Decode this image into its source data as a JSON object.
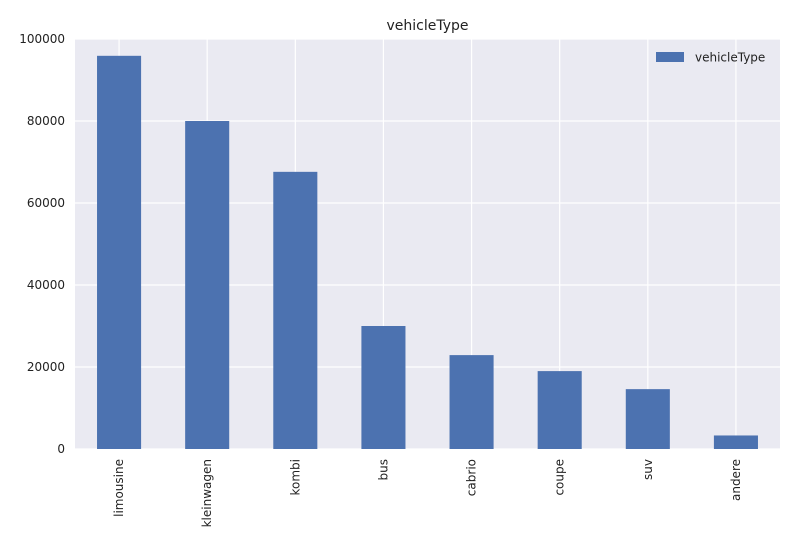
{
  "chart_data": {
    "type": "bar",
    "title": "vehicleType",
    "xlabel": "",
    "ylabel": "",
    "categories": [
      "limousine",
      "kleinwagen",
      "kombi",
      "bus",
      "cabrio",
      "coupe",
      "suv",
      "andere"
    ],
    "series": [
      {
        "name": "vehicleType",
        "values": [
          95900,
          80000,
          67600,
          30000,
          22900,
          19000,
          14600,
          3300
        ],
        "color": "#4c72b0"
      }
    ],
    "ylim": [
      0,
      100000
    ],
    "yticks": [
      0,
      20000,
      40000,
      60000,
      80000,
      100000
    ],
    "ytick_labels": [
      "0",
      "20000",
      "40000",
      "60000",
      "80000",
      "100000"
    ],
    "grid": true,
    "legend": "top-right",
    "style": {
      "plot_background": "#eaeaf2",
      "grid_color": "#ffffff"
    }
  }
}
